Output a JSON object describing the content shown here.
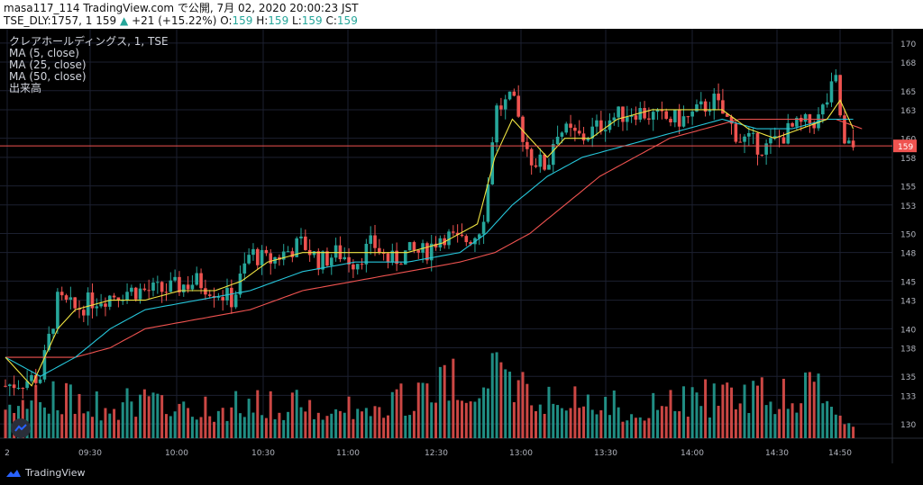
{
  "header": {
    "line1": "masa117_114 TradingView.com で公開, 7月 02, 2020 20:00:23 JST",
    "symbol": "TSE_DLY:1757, 1 159",
    "arrow": "▲",
    "change": "+21 (+15.22%)",
    "o_label": "O:",
    "o_value": "159",
    "h_label": "H:",
    "h_value": "159",
    "l_label": "L:",
    "l_value": "159",
    "c_label": "C:",
    "c_value": "159"
  },
  "legend": {
    "title": "クレアホールディングス, 1, TSE",
    "ma5": "MA (5, close)",
    "ma25": "MA (25, close)",
    "ma50": "MA (50, close)",
    "volume": "出来高"
  },
  "footer": {
    "brand": "TradingView",
    "logo_icon": "tradingview-logo-icon"
  },
  "colors": {
    "up": "#26a69a",
    "down": "#ef5350",
    "ma5": "#f0e442",
    "ma25": "#26c6da",
    "ma50": "#ef5350",
    "grid": "#1c2030",
    "price_line": "#ef5350"
  },
  "chart_data": {
    "type": "candlestick",
    "title": "クレアホールディングス, 1, TSE",
    "yaxis": {
      "ticks": [
        130,
        133,
        135,
        138,
        140,
        143,
        145,
        148,
        150,
        153,
        155,
        158,
        160,
        163,
        165,
        168,
        170
      ],
      "range": [
        128.5,
        171.5
      ]
    },
    "xaxis": {
      "ticks": [
        "2",
        "09:30",
        "10:00",
        "10:30",
        "11:00",
        "12:30",
        "13:00",
        "13:30",
        "14:00",
        "14:30",
        "14:50"
      ]
    },
    "current_price": {
      "label": "159",
      "value": 159.2
    },
    "price_series": [
      {
        "t": 0,
        "p": 134
      },
      {
        "t": 4,
        "p": 135
      },
      {
        "t": 6,
        "p": 143
      },
      {
        "t": 8,
        "p": 142
      },
      {
        "t": 10,
        "p": 143
      },
      {
        "t": 14,
        "p": 144
      },
      {
        "t": 18,
        "p": 144
      },
      {
        "t": 22,
        "p": 145
      },
      {
        "t": 26,
        "p": 143
      },
      {
        "t": 28,
        "p": 148
      },
      {
        "t": 30,
        "p": 147
      },
      {
        "t": 32,
        "p": 148
      },
      {
        "t": 34,
        "p": 149
      },
      {
        "t": 36,
        "p": 147
      },
      {
        "t": 38,
        "p": 148
      },
      {
        "t": 40,
        "p": 147
      },
      {
        "t": 42,
        "p": 149
      },
      {
        "t": 44,
        "p": 147
      },
      {
        "t": 46,
        "p": 148
      },
      {
        "t": 48,
        "p": 148
      },
      {
        "t": 50,
        "p": 150
      },
      {
        "t": 52,
        "p": 149
      },
      {
        "t": 54,
        "p": 150
      },
      {
        "t": 55,
        "p": 153
      },
      {
        "t": 56,
        "p": 163
      },
      {
        "t": 58,
        "p": 164
      },
      {
        "t": 60,
        "p": 158
      },
      {
        "t": 62,
        "p": 157
      },
      {
        "t": 63,
        "p": 161
      },
      {
        "t": 66,
        "p": 160
      },
      {
        "t": 69,
        "p": 162
      },
      {
        "t": 72,
        "p": 163
      },
      {
        "t": 75,
        "p": 162
      },
      {
        "t": 78,
        "p": 162
      },
      {
        "t": 81,
        "p": 164
      },
      {
        "t": 84,
        "p": 160
      },
      {
        "t": 87,
        "p": 159
      },
      {
        "t": 90,
        "p": 161
      },
      {
        "t": 93,
        "p": 162
      },
      {
        "t": 95,
        "p": 166
      },
      {
        "t": 96,
        "p": 159
      }
    ],
    "ma5": [
      {
        "t": 0,
        "p": 137
      },
      {
        "t": 3,
        "p": 134
      },
      {
        "t": 6,
        "p": 140
      },
      {
        "t": 8,
        "p": 142
      },
      {
        "t": 12,
        "p": 143
      },
      {
        "t": 16,
        "p": 143
      },
      {
        "t": 20,
        "p": 144
      },
      {
        "t": 24,
        "p": 144
      },
      {
        "t": 27,
        "p": 145
      },
      {
        "t": 30,
        "p": 147
      },
      {
        "t": 34,
        "p": 148
      },
      {
        "t": 38,
        "p": 148
      },
      {
        "t": 42,
        "p": 148
      },
      {
        "t": 46,
        "p": 148
      },
      {
        "t": 50,
        "p": 149
      },
      {
        "t": 54,
        "p": 151
      },
      {
        "t": 56,
        "p": 158
      },
      {
        "t": 58,
        "p": 162
      },
      {
        "t": 60,
        "p": 160
      },
      {
        "t": 62,
        "p": 158
      },
      {
        "t": 64,
        "p": 160
      },
      {
        "t": 67,
        "p": 160
      },
      {
        "t": 70,
        "p": 162
      },
      {
        "t": 74,
        "p": 163
      },
      {
        "t": 78,
        "p": 163
      },
      {
        "t": 82,
        "p": 163
      },
      {
        "t": 85,
        "p": 161
      },
      {
        "t": 88,
        "p": 160
      },
      {
        "t": 91,
        "p": 161
      },
      {
        "t": 94,
        "p": 162
      },
      {
        "t": 95.5,
        "p": 164
      },
      {
        "t": 97,
        "p": 161
      }
    ],
    "ma25": [
      {
        "t": 0,
        "p": 137
      },
      {
        "t": 4,
        "p": 135
      },
      {
        "t": 8,
        "p": 137
      },
      {
        "t": 12,
        "p": 140
      },
      {
        "t": 16,
        "p": 142
      },
      {
        "t": 22,
        "p": 143
      },
      {
        "t": 28,
        "p": 144
      },
      {
        "t": 34,
        "p": 146
      },
      {
        "t": 40,
        "p": 147
      },
      {
        "t": 46,
        "p": 147
      },
      {
        "t": 52,
        "p": 148
      },
      {
        "t": 55,
        "p": 150
      },
      {
        "t": 58,
        "p": 153
      },
      {
        "t": 62,
        "p": 156
      },
      {
        "t": 66,
        "p": 158
      },
      {
        "t": 70,
        "p": 159
      },
      {
        "t": 74,
        "p": 160
      },
      {
        "t": 78,
        "p": 161
      },
      {
        "t": 82,
        "p": 162
      },
      {
        "t": 86,
        "p": 161
      },
      {
        "t": 90,
        "p": 161
      },
      {
        "t": 94,
        "p": 162
      },
      {
        "t": 97,
        "p": 162
      }
    ],
    "ma50": [
      {
        "t": 0,
        "p": 137
      },
      {
        "t": 4,
        "p": 137
      },
      {
        "t": 8,
        "p": 137
      },
      {
        "t": 12,
        "p": 138
      },
      {
        "t": 16,
        "p": 140
      },
      {
        "t": 22,
        "p": 141
      },
      {
        "t": 28,
        "p": 142
      },
      {
        "t": 34,
        "p": 144
      },
      {
        "t": 40,
        "p": 145
      },
      {
        "t": 46,
        "p": 146
      },
      {
        "t": 52,
        "p": 147
      },
      {
        "t": 56,
        "p": 148
      },
      {
        "t": 60,
        "p": 150
      },
      {
        "t": 64,
        "p": 153
      },
      {
        "t": 68,
        "p": 156
      },
      {
        "t": 72,
        "p": 158
      },
      {
        "t": 76,
        "p": 160
      },
      {
        "t": 80,
        "p": 161
      },
      {
        "t": 84,
        "p": 162
      },
      {
        "t": 88,
        "p": 162
      },
      {
        "t": 92,
        "p": 162
      },
      {
        "t": 95,
        "p": 162
      },
      {
        "t": 98,
        "p": 161
      }
    ],
    "volume_peaks": [
      {
        "t": 0,
        "v": 0.6
      },
      {
        "t": 10,
        "v": 0.35
      },
      {
        "t": 25,
        "v": 0.3
      },
      {
        "t": 37,
        "v": 0.35
      },
      {
        "t": 48,
        "v": 0.45
      },
      {
        "t": 55,
        "v": 1.0
      },
      {
        "t": 56,
        "v": 0.85
      },
      {
        "t": 57,
        "v": 0.6
      },
      {
        "t": 70,
        "v": 0.3
      },
      {
        "t": 80,
        "v": 0.45
      },
      {
        "t": 95,
        "v": 0.55
      }
    ]
  }
}
